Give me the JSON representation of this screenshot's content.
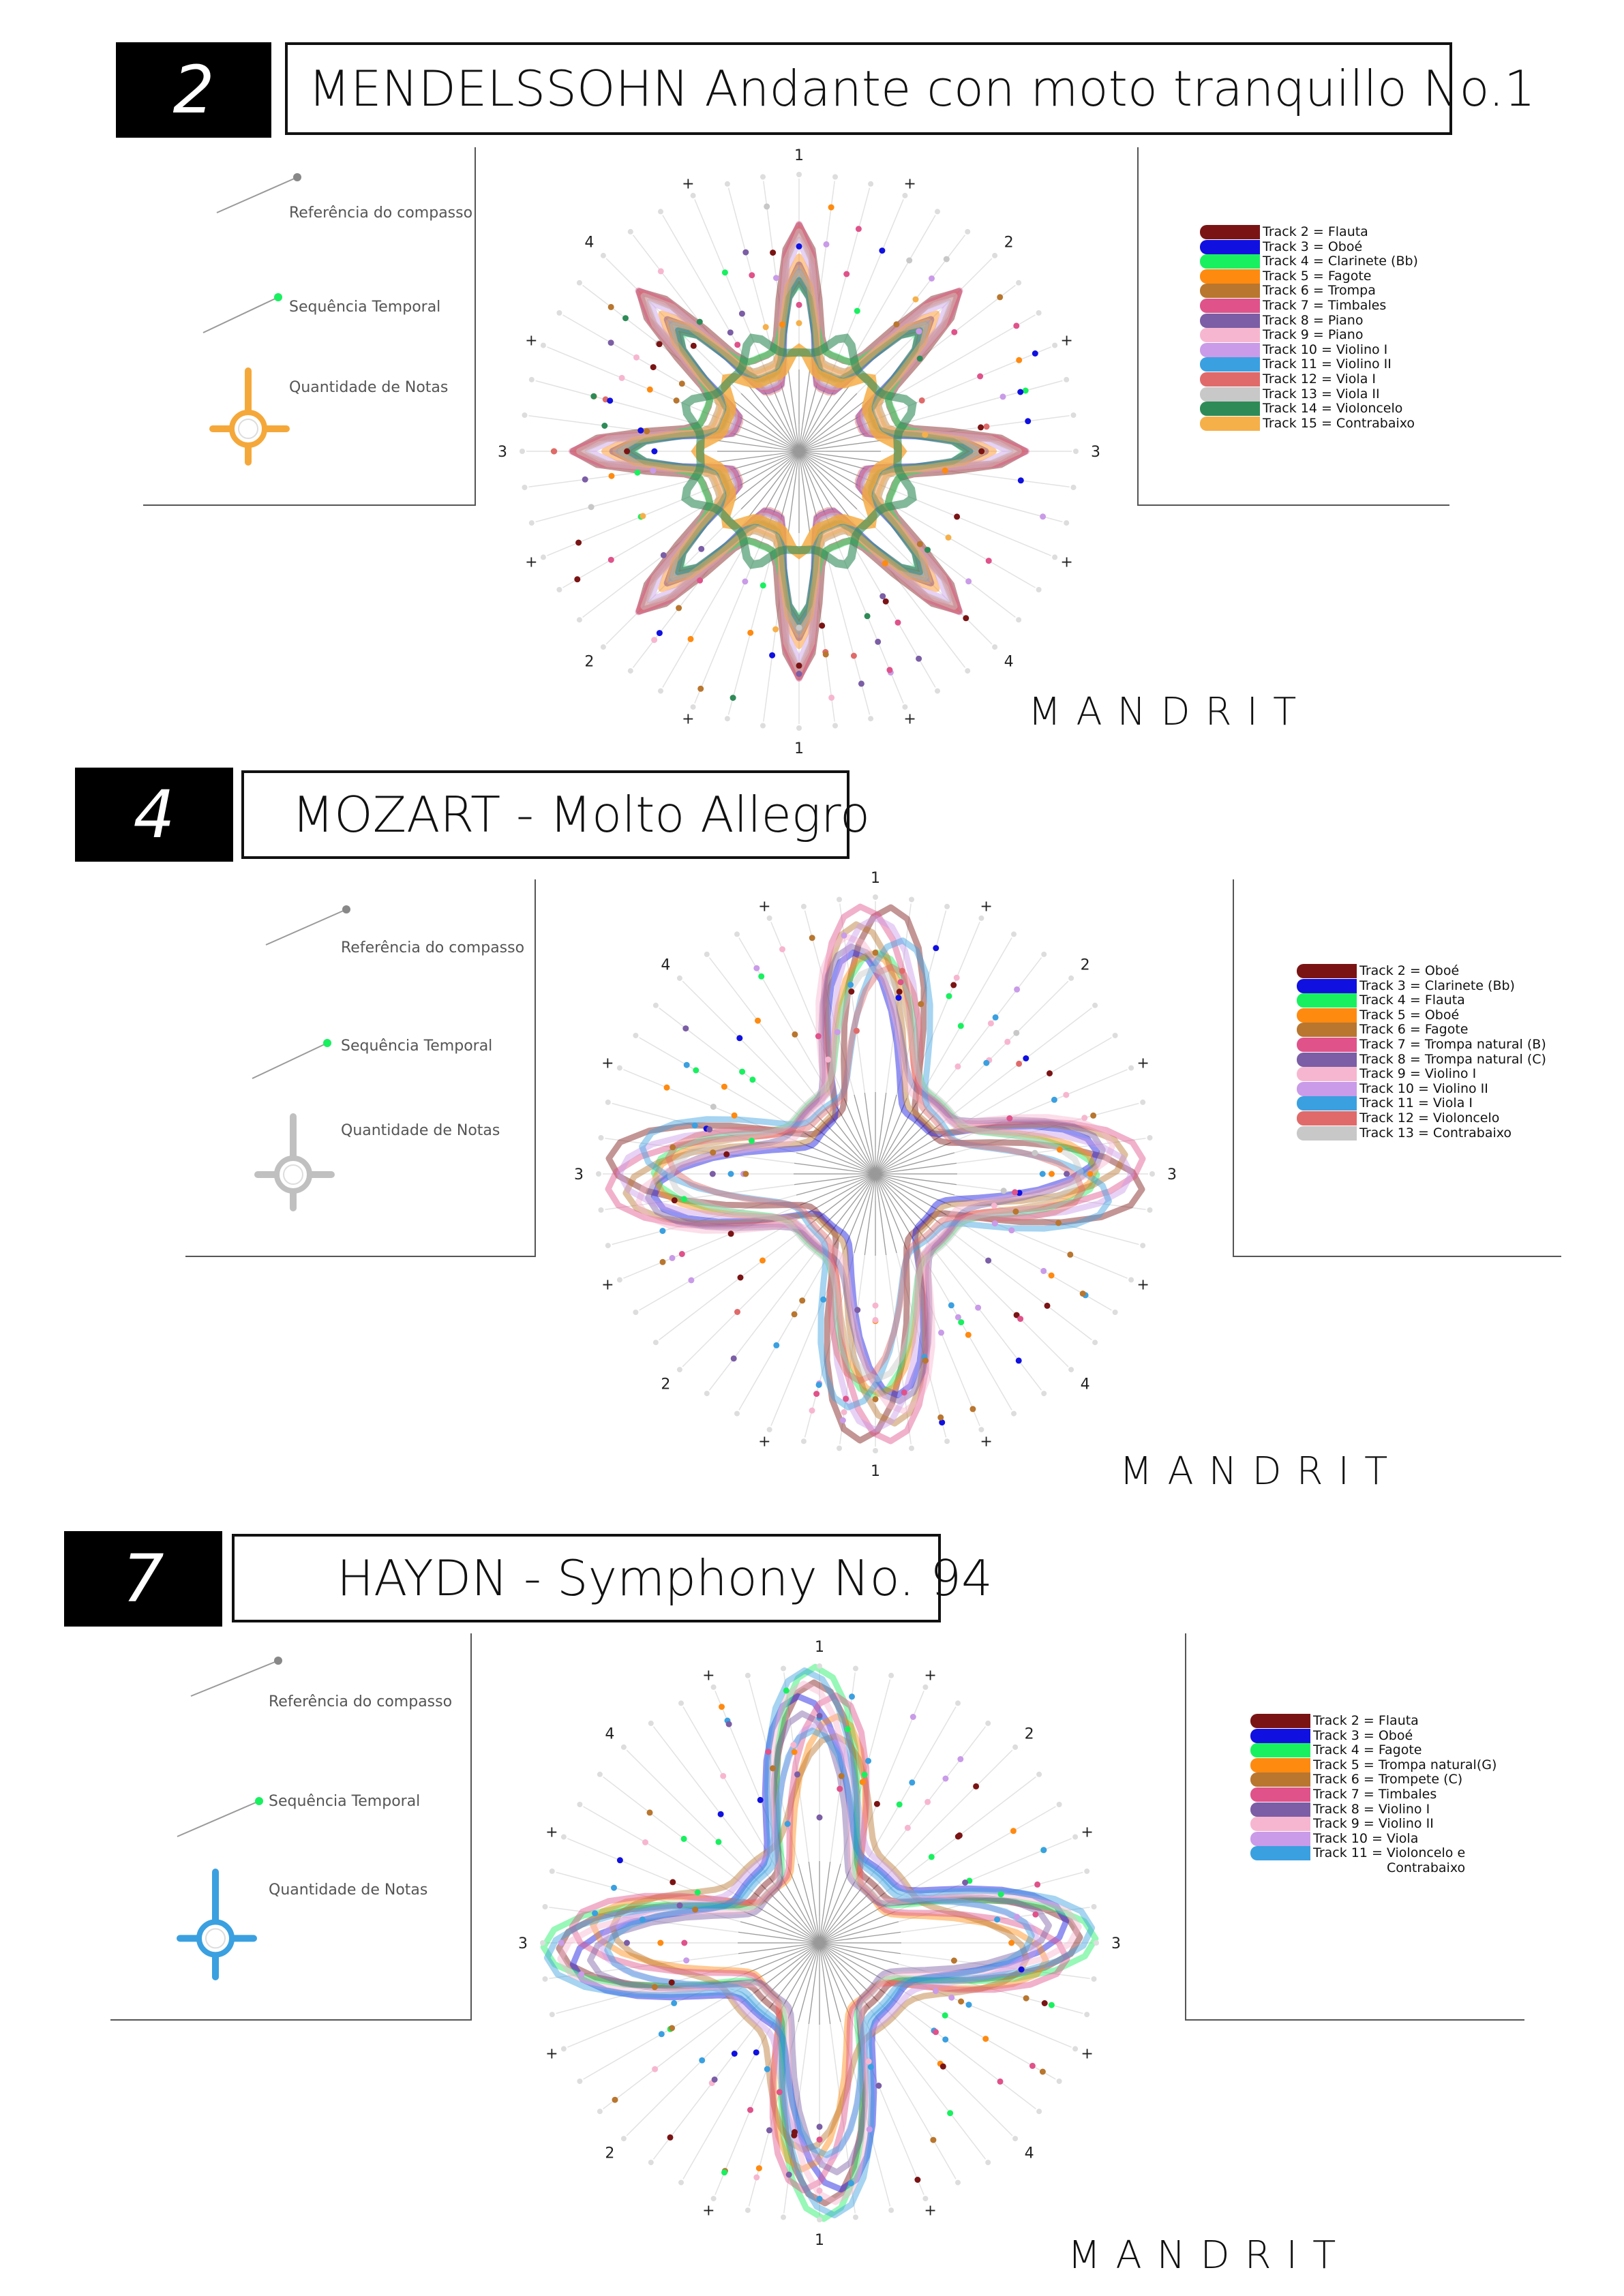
{
  "key_labels": {
    "bar_reference": "Referência do compasso",
    "time_sequence": "Sequência Temporal",
    "note_count": "Quantidade de Notas"
  },
  "brand": "MANDRIT",
  "axis_labels": {
    "top": "1",
    "right": "2",
    "left": "4",
    "ur": "2",
    "ul": "4",
    "mid_right": "3",
    "mid_left": "3",
    "lr": "4",
    "ll": "2",
    "bottom": "1",
    "plus": "+"
  },
  "sections": [
    {
      "number": "2",
      "title": "MENDELSSOHN Andante con moto tranquillo No.1",
      "accent": "#f5a83a",
      "legend": [
        {
          "label": "Track 2 = Flauta",
          "color": "#7a1414"
        },
        {
          "label": "Track 3 = Oboé",
          "color": "#1010e0"
        },
        {
          "label": "Track 4 = Clarinete (Bb)",
          "color": "#19f060"
        },
        {
          "label": "Track 5 = Fagote",
          "color": "#ff8a10"
        },
        {
          "label": "Track 6 = Trompa",
          "color": "#b8762f"
        },
        {
          "label": "Track 7 = Timbales",
          "color": "#e0528a"
        },
        {
          "label": "Track 8 = Piano",
          "color": "#7b5ea5"
        },
        {
          "label": "Track 9 = Piano",
          "color": "#f7b6cf"
        },
        {
          "label": "Track 10 = Violino I",
          "color": "#c99be8"
        },
        {
          "label": "Track 11 = Violino II",
          "color": "#3aa0e0"
        },
        {
          "label": "Track 12 = Viola I",
          "color": "#e06a6a"
        },
        {
          "label": "Track 13 = Viola II",
          "color": "#c8c8c8"
        },
        {
          "label": "Track 14 = Violoncelo",
          "color": "#2e8b57"
        },
        {
          "label": "Track 15 = Contrabaixo",
          "color": "#f5b04a"
        }
      ]
    },
    {
      "number": "4",
      "title": "MOZART - Molto Allegro",
      "accent": "#c0c0c0",
      "legend": [
        {
          "label": "Track 2 = Oboé",
          "color": "#7a1414"
        },
        {
          "label": "Track 3 = Clarinete (Bb)",
          "color": "#1010e0"
        },
        {
          "label": "Track 4 = Flauta",
          "color": "#19f060"
        },
        {
          "label": "Track 5 = Oboé",
          "color": "#ff8a10"
        },
        {
          "label": "Track 6 = Fagote",
          "color": "#b8762f"
        },
        {
          "label": "Track 7 = Trompa natural (B)",
          "color": "#e0528a"
        },
        {
          "label": "Track 8 = Trompa natural (C)",
          "color": "#7b5ea5"
        },
        {
          "label": "Track 9 = Violino I",
          "color": "#f7b6cf"
        },
        {
          "label": "Track 10 = Violino II",
          "color": "#c99be8"
        },
        {
          "label": "Track 11 = Viola I",
          "color": "#3aa0e0"
        },
        {
          "label": "Track 12 = Violoncelo",
          "color": "#e06a6a"
        },
        {
          "label": "Track 13 = Contrabaixo",
          "color": "#c8c8c8"
        }
      ]
    },
    {
      "number": "7",
      "title": "HAYDN - Symphony No. 94",
      "accent": "#3aa0e0",
      "legend": [
        {
          "label": "Track 2 = Flauta",
          "color": "#7a1414"
        },
        {
          "label": "Track 3 = Oboé",
          "color": "#1010e0"
        },
        {
          "label": "Track 4 = Fagote",
          "color": "#19f060"
        },
        {
          "label": "Track 5 = Trompa natural(G)",
          "color": "#ff8a10"
        },
        {
          "label": "Track 6 = Trompete (C)",
          "color": "#b8762f"
        },
        {
          "label": "Track 7 = Timbales",
          "color": "#e0528a"
        },
        {
          "label": "Track 8 = Violino I",
          "color": "#7b5ea5"
        },
        {
          "label": "Track 9 = Violino II",
          "color": "#f7b6cf"
        },
        {
          "label": "Track 10 = Viola",
          "color": "#c99be8"
        },
        {
          "label": "Track 11 = Violoncelo e",
          "color": "#3aa0e0"
        },
        {
          "label": "Contrabaixo",
          "color": "#3aa0e0"
        }
      ]
    }
  ]
}
